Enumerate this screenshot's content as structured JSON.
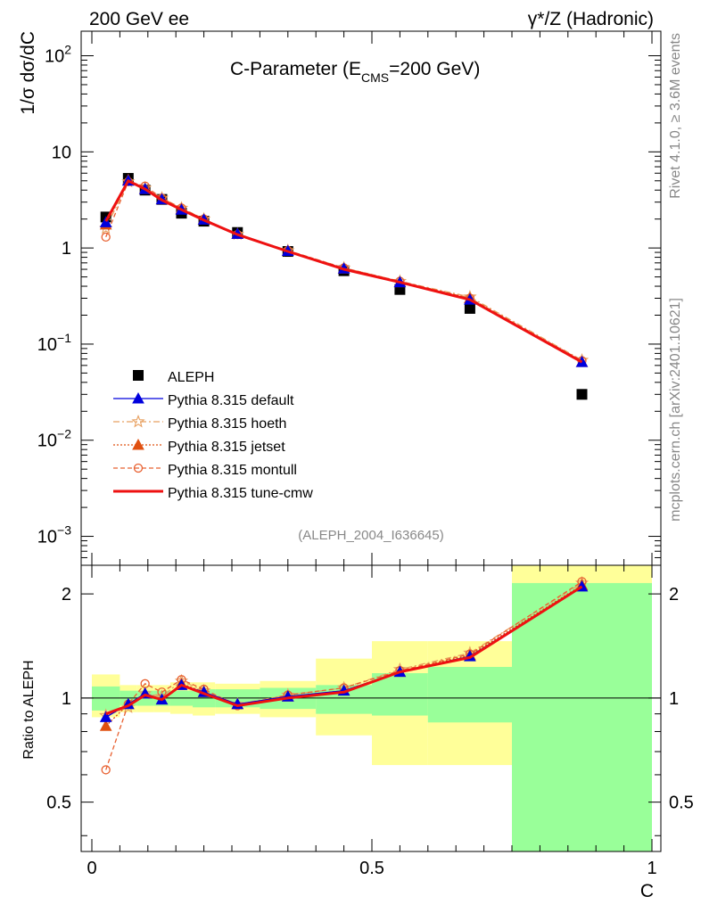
{
  "header": {
    "left": "200 GeV ee",
    "right": "γ*/Z (Hadronic)"
  },
  "side": {
    "rivet": "Rivet 4.1.0, ≥ 3.6M events",
    "mcplots": "mcplots.cern.ch [arXiv:2401.10621]"
  },
  "colors": {
    "data": "#000000",
    "default": "#0000dd",
    "hoeth": "#e8a060",
    "jetset": "#e05010",
    "montull": "#e86030",
    "cmw": "#ee1111",
    "band_inner": "#99ff99",
    "band_outer": "#ffff99"
  },
  "chart_data": [
    {
      "type": "line",
      "title": "C-Parameter (E_CMS=200 GeV)",
      "title_main": "C-Parameter (E",
      "title_sub": "CMS",
      "title_end": "=200 GeV)",
      "ylabel": "1/σ  dσ/dC",
      "xlabel": "C",
      "yscale": "log",
      "xlim": [
        0,
        1
      ],
      "ylim": [
        0.0005,
        180
      ],
      "yticks": [
        {
          "value": 0.001,
          "base": "10",
          "exp": "−3"
        },
        {
          "value": 0.01,
          "base": "10",
          "exp": "−2"
        },
        {
          "value": 0.1,
          "base": "10",
          "exp": "−1"
        },
        {
          "value": 1,
          "base": "1",
          "exp": ""
        },
        {
          "value": 10,
          "base": "10",
          "exp": ""
        },
        {
          "value": 100,
          "base": "10",
          "exp": "2"
        }
      ],
      "analysis_id": "(ALEPH_2004_I636645)",
      "x": [
        0.025,
        0.065,
        0.095,
        0.125,
        0.16,
        0.2,
        0.26,
        0.35,
        0.45,
        0.55,
        0.675,
        0.875
      ],
      "data_name": "ALEPH",
      "data_values": [
        2.1,
        5.3,
        4.0,
        3.2,
        2.3,
        1.9,
        1.45,
        0.92,
        0.58,
        0.37,
        0.235,
        0.03
      ],
      "series": [
        {
          "name": "Pythia 8.315 default",
          "key": "default",
          "values": [
            1.85,
            5.0,
            4.1,
            3.2,
            2.5,
            1.97,
            1.4,
            0.93,
            0.61,
            0.44,
            0.29,
            0.065
          ]
        },
        {
          "name": "Pythia 8.315 hoeth",
          "key": "hoeth",
          "values": [
            1.6,
            4.9,
            4.2,
            3.3,
            2.6,
            2.0,
            1.39,
            0.94,
            0.62,
            0.45,
            0.31,
            0.068
          ]
        },
        {
          "name": "Pythia 8.315 jetset",
          "key": "jetset",
          "values": [
            1.75,
            5.1,
            4.1,
            3.2,
            2.55,
            1.98,
            1.4,
            0.93,
            0.61,
            0.44,
            0.3,
            0.065
          ]
        },
        {
          "name": "Pythia 8.315 montull",
          "key": "montull",
          "values": [
            1.3,
            4.9,
            4.4,
            3.3,
            2.6,
            2.0,
            1.38,
            0.94,
            0.62,
            0.45,
            0.3,
            0.067
          ]
        },
        {
          "name": "Pythia 8.315 tune-cmw",
          "key": "cmw",
          "values": [
            1.9,
            5.0,
            4.1,
            3.15,
            2.5,
            1.95,
            1.38,
            0.92,
            0.6,
            0.44,
            0.29,
            0.065
          ]
        }
      ],
      "legend_position": "lower-left"
    },
    {
      "type": "line",
      "ylabel": "Ratio to ALEPH",
      "xlabel": "C",
      "yscale": "log",
      "xlim": [
        0,
        1
      ],
      "ylim": [
        0.36,
        2.42
      ],
      "yticks": [
        0.5,
        1,
        2
      ],
      "ytick_labels": [
        "0.5",
        "1",
        "2"
      ],
      "xticks": [
        0,
        0.5,
        1
      ],
      "xtick_labels": [
        "0",
        "0.5",
        "1"
      ],
      "x": [
        0.025,
        0.065,
        0.095,
        0.125,
        0.16,
        0.2,
        0.26,
        0.35,
        0.45,
        0.55,
        0.675,
        0.875
      ],
      "bins": [
        0,
        0.05,
        0.08,
        0.11,
        0.14,
        0.18,
        0.22,
        0.3,
        0.4,
        0.5,
        0.6,
        0.75,
        1.0
      ],
      "band_inner": [
        [
          0.92,
          1.08
        ],
        [
          0.95,
          1.05
        ],
        [
          0.95,
          1.05
        ],
        [
          0.95,
          1.05
        ],
        [
          0.95,
          1.05
        ],
        [
          0.94,
          1.06
        ],
        [
          0.94,
          1.06
        ],
        [
          0.93,
          1.07
        ],
        [
          0.9,
          1.09
        ],
        [
          0.89,
          1.18
        ],
        [
          0.85,
          1.23
        ],
        [
          0.36,
          2.15
        ]
      ],
      "band_outer": [
        [
          0.88,
          1.17
        ],
        [
          0.91,
          1.09
        ],
        [
          0.91,
          1.09
        ],
        [
          0.91,
          1.09
        ],
        [
          0.9,
          1.11
        ],
        [
          0.89,
          1.11
        ],
        [
          0.9,
          1.1
        ],
        [
          0.88,
          1.12
        ],
        [
          0.78,
          1.3
        ],
        [
          0.64,
          1.46
        ],
        [
          0.64,
          1.46
        ],
        [
          0.36,
          2.42
        ]
      ],
      "series": [
        {
          "name": "Pythia 8.315 default",
          "key": "default",
          "values": [
            0.88,
            0.96,
            1.03,
            0.99,
            1.09,
            1.04,
            0.96,
            1.01,
            1.05,
            1.19,
            1.32,
            2.1
          ]
        },
        {
          "name": "Pythia 8.315 hoeth",
          "key": "hoeth",
          "values": [
            0.89,
            0.94,
            1.03,
            1.01,
            1.12,
            1.05,
            0.96,
            1.02,
            1.07,
            1.21,
            1.35,
            2.15
          ]
        },
        {
          "name": "Pythia 8.315 jetset",
          "key": "jetset",
          "values": [
            0.83,
            0.96,
            1.03,
            0.99,
            1.1,
            1.04,
            0.96,
            1.01,
            1.05,
            1.19,
            1.33,
            2.12
          ]
        },
        {
          "name": "Pythia 8.315 montull",
          "key": "montull",
          "values": [
            0.62,
            0.96,
            1.1,
            1.04,
            1.13,
            1.06,
            0.95,
            1.02,
            1.07,
            1.2,
            1.34,
            2.17
          ]
        },
        {
          "name": "Pythia 8.315 tune-cmw",
          "key": "cmw",
          "values": [
            0.9,
            0.95,
            1.02,
            0.99,
            1.09,
            1.03,
            0.95,
            1.0,
            1.04,
            1.19,
            1.31,
            2.1
          ]
        }
      ]
    }
  ]
}
